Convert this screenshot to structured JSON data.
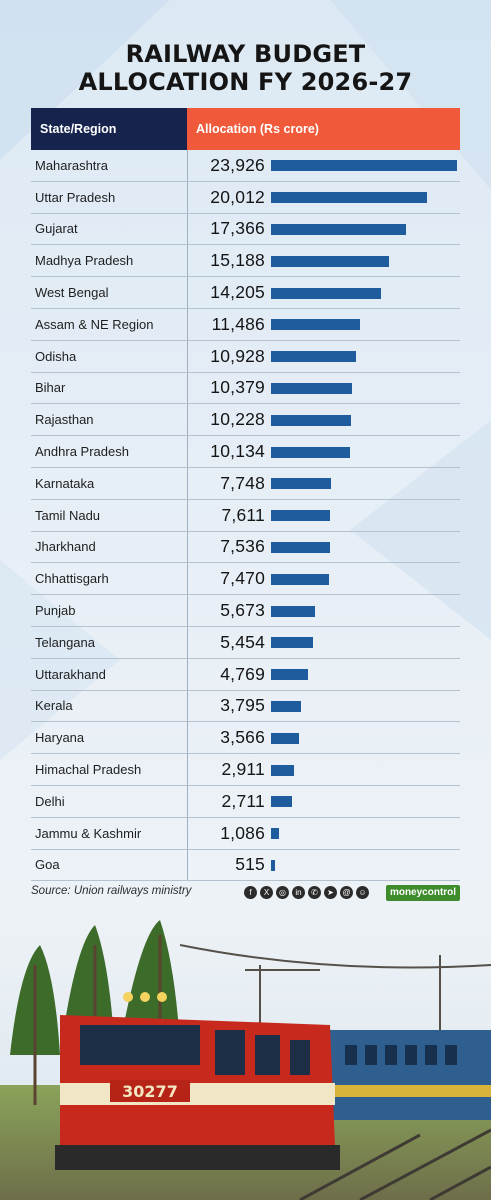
{
  "title_line1": "RAILWAY BUDGET",
  "title_line2": "ALLOCATION FY 2026-27",
  "header": {
    "col1": "State/Region",
    "col2": "Allocation (Rs crore)"
  },
  "source": "Source: Union railways ministry",
  "brand": "moneycontrol",
  "locomotive_number": "30277",
  "social_icons": [
    "facebook-icon",
    "x-icon",
    "instagram-icon",
    "linkedin-icon",
    "whatsapp-icon",
    "telegram-icon",
    "threads-icon",
    "snapchat-icon"
  ],
  "colors": {
    "header_left": "#15234d",
    "header_right": "#f05a3a",
    "bar": "#1f5c9d",
    "brand": "#3f8c2d"
  },
  "chart_data": {
    "type": "bar",
    "orientation": "horizontal",
    "title": "RAILWAY BUDGET ALLOCATION FY 2026-27",
    "categories": [
      "Maharashtra",
      "Uttar Pradesh",
      "Gujarat",
      "Madhya Pradesh",
      "West Bengal",
      "Assam & NE Region",
      "Odisha",
      "Bihar",
      "Rajasthan",
      "Andhra Pradesh",
      "Karnataka",
      "Tamil Nadu",
      "Jharkhand",
      "Chhattisgarh",
      "Punjab",
      "Telangana",
      "Uttarakhand",
      "Kerala",
      "Haryana",
      "Himachal Pradesh",
      "Delhi",
      "Jammu & Kashmir",
      "Goa"
    ],
    "values": [
      23926,
      20012,
      17366,
      15188,
      14205,
      11486,
      10928,
      10379,
      10228,
      10134,
      7748,
      7611,
      7536,
      7470,
      5673,
      5454,
      4769,
      3795,
      3566,
      2911,
      2711,
      1086,
      515
    ],
    "value_labels": [
      "23,926",
      "20,012",
      "17,366",
      "15,188",
      "14,205",
      "11,486",
      "10,928",
      "10,379",
      "10,228",
      "10,134",
      "7,748",
      "7,611",
      "7,536",
      "7,470",
      "5,673",
      "5,454",
      "4,769",
      "3,795",
      "3,566",
      "2,911",
      "2,711",
      "1,086",
      "515"
    ],
    "xlim": [
      0,
      23926
    ]
  }
}
